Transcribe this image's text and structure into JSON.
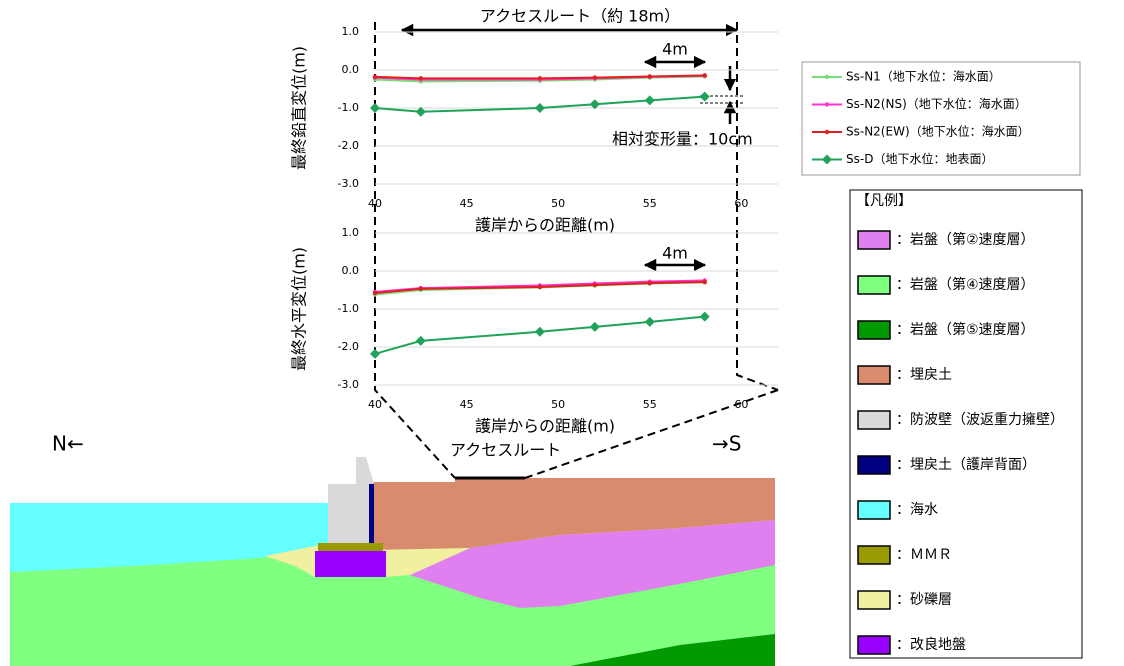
{
  "chart_data": [
    {
      "type": "line",
      "y_label": "最終鉛直変位(m)",
      "x_label": "護岸からの距離(m)",
      "annotations": [
        "アクセスルート（約 18m）",
        "4m",
        "相対変形量：10cm"
      ],
      "x": [
        40,
        42.5,
        49,
        52,
        55,
        58
      ],
      "xlim": [
        40,
        62
      ],
      "xticks": [
        40,
        45,
        50,
        55,
        60
      ],
      "ylim": [
        -3,
        1
      ],
      "yticks": [
        {
          "value": -3,
          "label": "-3.0"
        },
        {
          "value": -2,
          "label": "-2.0"
        },
        {
          "value": -1,
          "label": "-1.0"
        },
        {
          "value": 0,
          "label": "0.0"
        },
        {
          "value": 1,
          "label": "1.0"
        }
      ],
      "grid": true,
      "series": [
        {
          "name": "Ss-N1（地下水位：海水面）",
          "color": "#77dd77",
          "marker": "circle",
          "values": [
            -0.25,
            -0.3,
            -0.28,
            -0.25,
            -0.2,
            -0.17
          ]
        },
        {
          "name": "Ss-N2(NS)（地下水位：海水面）",
          "color": "#ff33cc",
          "marker": "circle",
          "values": [
            -0.2,
            -0.25,
            -0.25,
            -0.22,
            -0.18,
            -0.15
          ]
        },
        {
          "name": "Ss-N2(EW)（地下水位：海水面）",
          "color": "#e02020",
          "marker": "circle",
          "values": [
            -0.18,
            -0.22,
            -0.22,
            -0.2,
            -0.17,
            -0.14
          ]
        },
        {
          "name": "Ss-D（地下水位：地表面）",
          "color": "#1fa35a",
          "marker": "diamond",
          "values": [
            -1.0,
            -1.1,
            -1.0,
            -0.9,
            -0.8,
            -0.7
          ]
        }
      ]
    },
    {
      "type": "line",
      "y_label": "最終水平変位(m)",
      "x_label": "護岸からの距離(m)",
      "annotations": [
        "4m"
      ],
      "x": [
        40,
        42.5,
        49,
        52,
        55,
        58
      ],
      "xlim": [
        40,
        62
      ],
      "xticks": [
        40,
        45,
        50,
        55,
        60
      ],
      "ylim": [
        -3,
        1
      ],
      "yticks": [
        {
          "value": -3,
          "label": "-3.0"
        },
        {
          "value": -2,
          "label": "-2.0"
        },
        {
          "value": -1,
          "label": "-1.0"
        },
        {
          "value": 0,
          "label": "0.0"
        },
        {
          "value": 1,
          "label": "1.0"
        }
      ],
      "grid": true,
      "series": [
        {
          "color": "#77dd77",
          "marker": "circle",
          "values": [
            -0.62,
            -0.5,
            -0.43,
            -0.38,
            -0.33,
            -0.3
          ]
        },
        {
          "color": "#ff33cc",
          "marker": "circle",
          "values": [
            -0.55,
            -0.45,
            -0.38,
            -0.33,
            -0.28,
            -0.25
          ]
        },
        {
          "color": "#e02020",
          "marker": "circle",
          "values": [
            -0.58,
            -0.47,
            -0.42,
            -0.37,
            -0.32,
            -0.29
          ]
        },
        {
          "color": "#1fa35a",
          "marker": "diamond",
          "values": [
            -2.18,
            -1.84,
            -1.6,
            -1.47,
            -1.34,
            -1.2
          ]
        }
      ]
    }
  ],
  "diagram": {
    "labels": {
      "north": "N←",
      "south": "→S",
      "route": "アクセスルート"
    },
    "legend": {
      "title": "【凡例】",
      "items": [
        {
          "label": "：岩盤（第②速度層）",
          "color": "#e080f0"
        },
        {
          "label": "：岩盤（第④速度層）",
          "color": "#80ff80"
        },
        {
          "label": "：岩盤（第⑤速度層）",
          "color": "#009900"
        },
        {
          "label": "：埋戻土",
          "color": "#d98b6e"
        },
        {
          "label": "：防波壁（波返重力擁壁）",
          "color": "#d9d9d9"
        },
        {
          "label": "：埋戻土（護岸背面）",
          "color": "#000080"
        },
        {
          "label": "：海水",
          "color": "#66ffff"
        },
        {
          "label": "：ＭＭＲ",
          "color": "#999900"
        },
        {
          "label": "：砂礫層",
          "color": "#f0f0a0"
        },
        {
          "label": "：改良地盤",
          "color": "#9900ff"
        }
      ]
    }
  }
}
